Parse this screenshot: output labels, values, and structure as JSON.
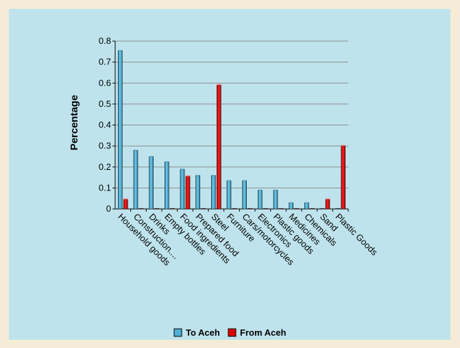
{
  "chart_data": {
    "type": "bar",
    "title": "",
    "xlabel": "",
    "ylabel": "Percentage",
    "ylim": [
      0,
      0.8
    ],
    "yticks": [
      "0",
      "0.1",
      "0.2",
      "0.3",
      "0.4",
      "0.5",
      "0.6",
      "0.7",
      "0.8"
    ],
    "categories": [
      "Household goods",
      "Construction....",
      "Drinks",
      "Empty bottles",
      "Food ingredients",
      "Prepared food",
      "Steel",
      "Furniture",
      "Cars/motorcycles",
      "Electronics",
      "Plastic goods",
      "Medicines",
      "Chemicals",
      "Sand",
      "Plastic Goods"
    ],
    "series": [
      {
        "name": "To Aceh",
        "color": "#4fb0d8",
        "values": [
          0.755,
          0.28,
          0.25,
          0.225,
          0.19,
          0.16,
          0.16,
          0.135,
          0.135,
          0.09,
          0.09,
          0.03,
          0.03,
          0.0,
          0.0
        ]
      },
      {
        "name": "From Aceh",
        "color": "#e00000",
        "values": [
          0.045,
          0.0,
          0.0,
          0.0,
          0.155,
          0.0,
          0.59,
          0.0,
          0.0,
          0.0,
          0.0,
          0.0,
          0.0,
          0.045,
          0.3
        ]
      }
    ],
    "grid": true,
    "legend": "bottom-center"
  }
}
